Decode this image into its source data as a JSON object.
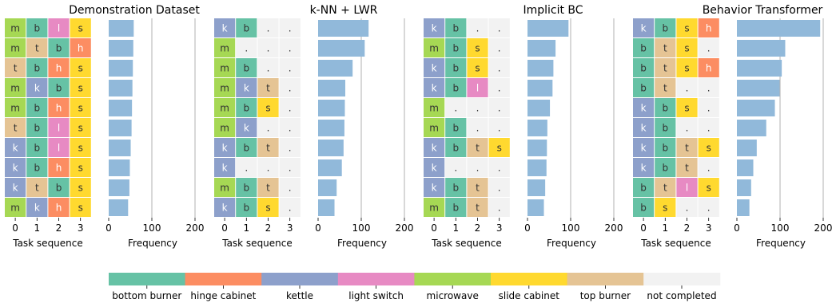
{
  "colors": {
    "bottom_burner": "#66c2a5",
    "hinge_cabinet": "#fc8d62",
    "kettle": "#8da0cb",
    "light_switch": "#e78ac3",
    "microwave": "#a6d854",
    "slide_cabinet": "#ffd92f",
    "top_burner": "#e5c494",
    "not_completed": "#f2f2f2",
    "bar": "#91b9da",
    "grid": "#b0b0b0"
  },
  "chart_data": [
    {
      "type": "heatmap",
      "title": "Demonstration Dataset",
      "xlabel": "Task sequence",
      "xticks": [
        "0",
        "1",
        "2",
        "3"
      ],
      "rows": [
        [
          "m",
          "b",
          "l",
          "s"
        ],
        [
          "m",
          "t",
          "b",
          "h"
        ],
        [
          "t",
          "b",
          "h",
          "s"
        ],
        [
          "m",
          "k",
          "b",
          "s"
        ],
        [
          "m",
          "b",
          "h",
          "s"
        ],
        [
          "t",
          "b",
          "l",
          "s"
        ],
        [
          "k",
          "b",
          "l",
          "s"
        ],
        [
          "k",
          "b",
          "h",
          "s"
        ],
        [
          "k",
          "t",
          "b",
          "s"
        ],
        [
          "m",
          "k",
          "h",
          "s"
        ]
      ]
    },
    {
      "type": "bar",
      "orientation": "horizontal",
      "xlabel": "Frequency",
      "xlim": [
        0,
        200
      ],
      "xticks": [
        "0",
        "100",
        "200"
      ],
      "values": [
        58,
        57,
        56,
        55,
        54,
        53,
        51,
        49,
        48,
        45
      ]
    },
    {
      "type": "heatmap",
      "title": "k-NN + LWR",
      "xlabel": "Task sequence",
      "xticks": [
        "0",
        "1",
        "2",
        "3"
      ],
      "rows": [
        [
          "k",
          "b",
          ".",
          "."
        ],
        [
          "m",
          ".",
          ".",
          "."
        ],
        [
          "m",
          "b",
          ".",
          "."
        ],
        [
          "m",
          "k",
          "t",
          "."
        ],
        [
          "m",
          "b",
          "s",
          "."
        ],
        [
          "m",
          "k",
          ".",
          "."
        ],
        [
          "k",
          "b",
          "t",
          "."
        ],
        [
          "k",
          ".",
          ".",
          "."
        ],
        [
          "m",
          "b",
          "t",
          "."
        ],
        [
          "k",
          "b",
          "s",
          "."
        ]
      ]
    },
    {
      "type": "bar",
      "orientation": "horizontal",
      "xlabel": "Frequency",
      "xlim": [
        0,
        200
      ],
      "xticks": [
        "0",
        "100",
        "200"
      ],
      "values": [
        117,
        108,
        80,
        63,
        62,
        61,
        59,
        55,
        43,
        38
      ]
    },
    {
      "type": "heatmap",
      "title": "Implicit BC",
      "xlabel": "Task sequence",
      "xticks": [
        "0",
        "1",
        "2",
        "3"
      ],
      "rows": [
        [
          "k",
          "b",
          ".",
          "."
        ],
        [
          "m",
          "b",
          "s",
          "."
        ],
        [
          "k",
          "b",
          "s",
          "."
        ],
        [
          "k",
          "b",
          "l",
          "."
        ],
        [
          "m",
          ".",
          ".",
          "."
        ],
        [
          "m",
          "b",
          ".",
          "."
        ],
        [
          "k",
          "b",
          "t",
          "s"
        ],
        [
          "k",
          ".",
          ".",
          "."
        ],
        [
          "k",
          "b",
          "t",
          "."
        ],
        [
          "m",
          "b",
          "t",
          "."
        ]
      ]
    },
    {
      "type": "bar",
      "orientation": "horizontal",
      "xlabel": "Frequency",
      "xlim": [
        0,
        200
      ],
      "xticks": [
        "0",
        "100",
        "200"
      ],
      "values": [
        95,
        65,
        60,
        58,
        52,
        46,
        45,
        44,
        41,
        38
      ]
    },
    {
      "type": "heatmap",
      "title": "Behavior Transformer",
      "xlabel": "Task sequence",
      "xticks": [
        "0",
        "1",
        "2",
        "3"
      ],
      "rows": [
        [
          "k",
          "b",
          "s",
          "h"
        ],
        [
          "b",
          "t",
          "s",
          "."
        ],
        [
          "b",
          "t",
          "s",
          "h"
        ],
        [
          "b",
          "t",
          ".",
          "."
        ],
        [
          "k",
          "b",
          "s",
          "."
        ],
        [
          "k",
          "b",
          ".",
          "."
        ],
        [
          "k",
          "b",
          "t",
          "s"
        ],
        [
          "k",
          "b",
          "t",
          "."
        ],
        [
          "b",
          "t",
          "l",
          "s"
        ],
        [
          "b",
          "s",
          ".",
          "."
        ]
      ]
    },
    {
      "type": "bar",
      "orientation": "horizontal",
      "xlabel": "Frequency",
      "xlim": [
        0,
        200
      ],
      "xticks": [
        "0",
        "100",
        "200"
      ],
      "values": [
        193,
        112,
        104,
        99,
        88,
        68,
        46,
        38,
        33,
        29
      ]
    }
  ],
  "legend": {
    "items": [
      {
        "label": "bottom burner",
        "color_key": "bottom_burner"
      },
      {
        "label": "hinge cabinet",
        "color_key": "hinge_cabinet"
      },
      {
        "label": "kettle",
        "color_key": "kettle"
      },
      {
        "label": "light switch",
        "color_key": "light_switch"
      },
      {
        "label": "microwave",
        "color_key": "microwave"
      },
      {
        "label": "slide cabinet",
        "color_key": "slide_cabinet"
      },
      {
        "label": "top burner",
        "color_key": "top_burner"
      },
      {
        "label": "not completed",
        "color_key": "not_completed"
      }
    ]
  }
}
